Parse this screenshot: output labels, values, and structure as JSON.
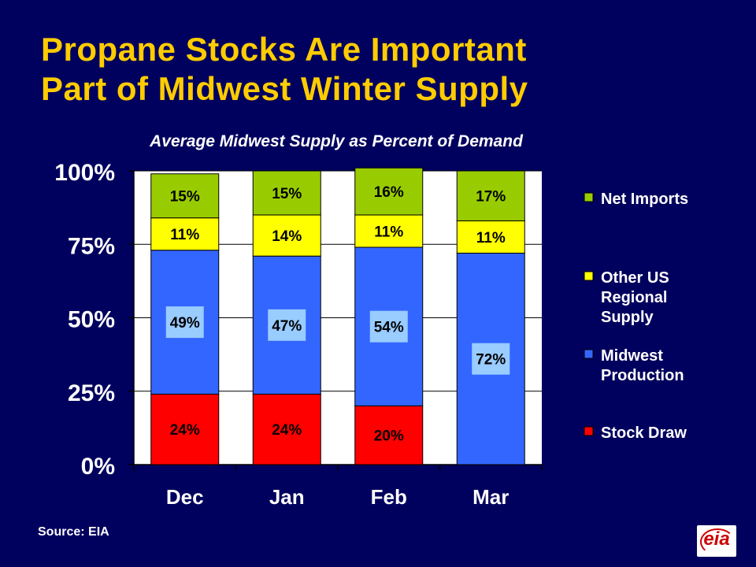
{
  "slide": {
    "title_line1": "Propane Stocks Are Important",
    "title_line2": "Part of Midwest Winter Supply",
    "source": "Source: EIA",
    "logo_text": "eia"
  },
  "colors": {
    "background": "#00005e",
    "title": "#ffcc00",
    "plot_area": "#ffffff",
    "Net Imports": "#99cc00",
    "Other US Regional Supply": "#ffff00",
    "Midwest Production": "#3366ff",
    "Stock Draw": "#ff0000",
    "highlight_label_box": "#99ccff"
  },
  "chart_data": {
    "type": "bar",
    "stacked": true,
    "title": "Average Midwest Supply as Percent of Demand",
    "xlabel": "",
    "ylabel": "",
    "categories": [
      "Dec",
      "Jan",
      "Feb",
      "Mar"
    ],
    "ylim": [
      0,
      100
    ],
    "yticks": [
      "0%",
      "25%",
      "50%",
      "75%",
      "100%"
    ],
    "grid": true,
    "legend_position": "right",
    "series": [
      {
        "name": "Stock Draw",
        "values": [
          24,
          24,
          20,
          0
        ],
        "labels": [
          "24%",
          "24%",
          "20%",
          ""
        ]
      },
      {
        "name": "Midwest Production",
        "values": [
          49,
          47,
          54,
          72
        ],
        "labels": [
          "49%",
          "47%",
          "54%",
          "72%"
        ]
      },
      {
        "name": "Other US Regional Supply",
        "values": [
          11,
          14,
          11,
          11
        ],
        "labels": [
          "11%",
          "14%",
          "11%",
          "11%"
        ]
      },
      {
        "name": "Net Imports",
        "values": [
          15,
          15,
          16,
          17
        ],
        "labels": [
          "15%",
          "15%",
          "16%",
          "17%"
        ]
      }
    ],
    "legend": [
      {
        "series": "Net Imports",
        "lines": [
          "Net Imports"
        ]
      },
      {
        "series": "Other US Regional Supply",
        "lines": [
          "Other US",
          "Regional",
          "Supply"
        ]
      },
      {
        "series": "Midwest Production",
        "lines": [
          "Midwest",
          "Production"
        ]
      },
      {
        "series": "Stock Draw",
        "lines": [
          "Stock Draw"
        ]
      }
    ]
  }
}
